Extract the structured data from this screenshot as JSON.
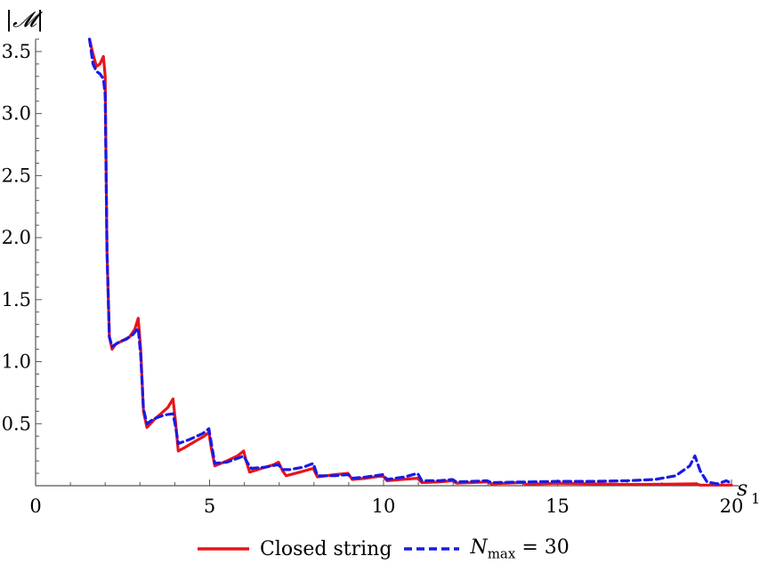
{
  "chart_data": {
    "type": "line",
    "ylabel": "|𝓜|",
    "xlabel": "s",
    "xlabel_sub": "1",
    "xlim": [
      0,
      20
    ],
    "ylim": [
      0,
      3.6
    ],
    "x_ticks": [
      "0",
      "5",
      "10",
      "15",
      "20"
    ],
    "y_ticks": [
      "0.5",
      "1.0",
      "1.5",
      "2.0",
      "2.5",
      "3.0",
      "3.5"
    ],
    "x_tick_values": [
      0,
      5,
      10,
      15,
      20
    ],
    "y_tick_values": [
      0.5,
      1.0,
      1.5,
      2.0,
      2.5,
      3.0,
      3.5
    ],
    "grid": false,
    "legend_position": "bottom",
    "series": [
      {
        "name": "Closed string",
        "color": "#e8141c",
        "style": "solid",
        "points": [
          [
            1.55,
            3.6
          ],
          [
            1.65,
            3.48
          ],
          [
            1.75,
            3.38
          ],
          [
            1.85,
            3.4
          ],
          [
            1.95,
            3.46
          ],
          [
            2.0,
            3.3
          ],
          [
            2.05,
            1.9
          ],
          [
            2.12,
            1.2
          ],
          [
            2.2,
            1.1
          ],
          [
            2.3,
            1.14
          ],
          [
            2.5,
            1.17
          ],
          [
            2.7,
            1.2
          ],
          [
            2.85,
            1.26
          ],
          [
            2.95,
            1.35
          ],
          [
            3.02,
            1.1
          ],
          [
            3.1,
            0.6
          ],
          [
            3.2,
            0.47
          ],
          [
            3.4,
            0.53
          ],
          [
            3.6,
            0.58
          ],
          [
            3.8,
            0.63
          ],
          [
            3.95,
            0.7
          ],
          [
            4.02,
            0.52
          ],
          [
            4.1,
            0.28
          ],
          [
            4.3,
            0.31
          ],
          [
            4.6,
            0.36
          ],
          [
            4.85,
            0.4
          ],
          [
            4.98,
            0.43
          ],
          [
            5.05,
            0.3
          ],
          [
            5.15,
            0.16
          ],
          [
            5.5,
            0.2
          ],
          [
            5.8,
            0.24
          ],
          [
            5.98,
            0.28
          ],
          [
            6.05,
            0.2
          ],
          [
            6.15,
            0.11
          ],
          [
            6.5,
            0.14
          ],
          [
            6.85,
            0.17
          ],
          [
            6.98,
            0.19
          ],
          [
            7.1,
            0.12
          ],
          [
            7.2,
            0.08
          ],
          [
            7.6,
            0.11
          ],
          [
            7.98,
            0.14
          ],
          [
            8.1,
            0.07
          ],
          [
            8.6,
            0.09
          ],
          [
            8.98,
            0.1
          ],
          [
            9.1,
            0.05
          ],
          [
            9.5,
            0.06
          ],
          [
            9.98,
            0.08
          ],
          [
            10.1,
            0.04
          ],
          [
            10.5,
            0.05
          ],
          [
            10.98,
            0.06
          ],
          [
            11.1,
            0.025
          ],
          [
            11.6,
            0.03
          ],
          [
            11.98,
            0.04
          ],
          [
            12.1,
            0.02
          ],
          [
            12.98,
            0.03
          ],
          [
            13.1,
            0.015
          ],
          [
            13.98,
            0.025
          ],
          [
            14.1,
            0.012
          ],
          [
            15.0,
            0.02
          ],
          [
            16.0,
            0.015
          ],
          [
            17.0,
            0.01
          ],
          [
            18.0,
            0.012
          ],
          [
            18.98,
            0.015
          ],
          [
            19.1,
            0.005
          ],
          [
            20.0,
            0.005
          ]
        ]
      },
      {
        "name": "N = 30",
        "name_main": "N",
        "name_sub": "max",
        "name_rest": " = 30",
        "color": "#1a1ae6",
        "style": "dashed",
        "points": [
          [
            1.55,
            3.6
          ],
          [
            1.65,
            3.4
          ],
          [
            1.75,
            3.34
          ],
          [
            1.85,
            3.32
          ],
          [
            1.95,
            3.28
          ],
          [
            2.0,
            3.15
          ],
          [
            2.05,
            1.9
          ],
          [
            2.12,
            1.2
          ],
          [
            2.2,
            1.12
          ],
          [
            2.4,
            1.16
          ],
          [
            2.6,
            1.18
          ],
          [
            2.8,
            1.22
          ],
          [
            2.95,
            1.27
          ],
          [
            3.02,
            1.05
          ],
          [
            3.1,
            0.62
          ],
          [
            3.2,
            0.5
          ],
          [
            3.4,
            0.54
          ],
          [
            3.7,
            0.57
          ],
          [
            3.95,
            0.58
          ],
          [
            4.02,
            0.48
          ],
          [
            4.1,
            0.34
          ],
          [
            4.4,
            0.37
          ],
          [
            4.8,
            0.42
          ],
          [
            4.98,
            0.46
          ],
          [
            5.05,
            0.34
          ],
          [
            5.15,
            0.18
          ],
          [
            5.5,
            0.19
          ],
          [
            5.8,
            0.22
          ],
          [
            5.98,
            0.24
          ],
          [
            6.1,
            0.18
          ],
          [
            6.2,
            0.14
          ],
          [
            6.6,
            0.15
          ],
          [
            6.98,
            0.17
          ],
          [
            7.1,
            0.13
          ],
          [
            7.3,
            0.13
          ],
          [
            7.7,
            0.15
          ],
          [
            7.98,
            0.18
          ],
          [
            8.1,
            0.08
          ],
          [
            8.6,
            0.08
          ],
          [
            8.98,
            0.09
          ],
          [
            9.1,
            0.06
          ],
          [
            9.5,
            0.07
          ],
          [
            9.98,
            0.09
          ],
          [
            10.1,
            0.05
          ],
          [
            10.6,
            0.07
          ],
          [
            10.98,
            0.1
          ],
          [
            11.1,
            0.04
          ],
          [
            11.6,
            0.04
          ],
          [
            11.98,
            0.05
          ],
          [
            12.1,
            0.03
          ],
          [
            12.98,
            0.04
          ],
          [
            13.1,
            0.025
          ],
          [
            13.98,
            0.03
          ],
          [
            14.1,
            0.03
          ],
          [
            15.0,
            0.035
          ],
          [
            16.0,
            0.035
          ],
          [
            17.0,
            0.04
          ],
          [
            17.8,
            0.05
          ],
          [
            18.4,
            0.08
          ],
          [
            18.8,
            0.16
          ],
          [
            18.95,
            0.24
          ],
          [
            19.1,
            0.12
          ],
          [
            19.3,
            0.03
          ],
          [
            19.6,
            0.015
          ],
          [
            19.85,
            0.04
          ],
          [
            20.0,
            0.02
          ]
        ]
      }
    ]
  }
}
